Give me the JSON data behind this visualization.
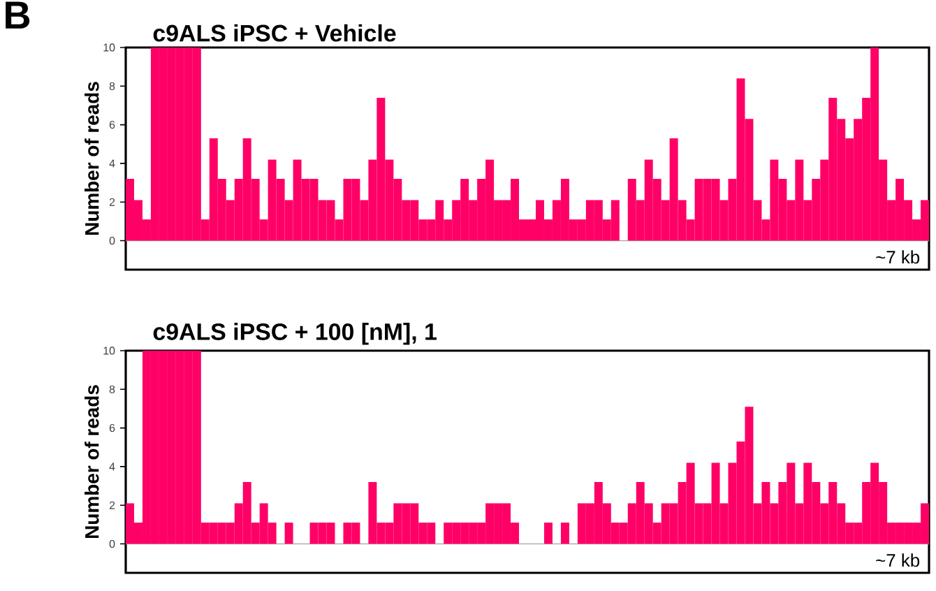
{
  "chart_data": [
    {
      "type": "bar",
      "title": "c9ALS iPSC + Vehicle",
      "ylabel": "Number of reads",
      "annotations": [
        "B",
        "~7 kb"
      ],
      "categories": [
        null,
        null,
        null,
        null,
        null,
        null,
        null,
        null,
        null,
        null,
        null,
        null,
        null,
        null,
        null,
        null,
        null,
        null,
        null,
        null,
        null,
        null,
        null,
        null,
        null,
        null,
        null,
        null,
        null,
        null,
        null,
        null,
        null,
        null,
        null,
        null,
        null,
        null,
        null,
        null,
        null,
        null,
        null,
        null,
        null,
        null,
        null,
        null,
        null,
        null,
        null,
        null,
        null,
        null,
        null,
        null,
        null,
        null,
        null,
        null,
        null,
        null,
        null,
        null,
        null,
        null,
        null,
        null,
        null,
        null,
        null,
        null,
        null,
        null,
        null,
        null,
        null,
        null,
        null,
        null,
        null,
        null,
        null,
        null,
        null,
        null,
        null,
        null,
        null,
        null,
        null,
        null,
        null,
        null,
        null,
        null
      ],
      "values": [
        3.2,
        2.1,
        1.1,
        10,
        10,
        10,
        10,
        10,
        10,
        1.1,
        5.3,
        3.2,
        2.1,
        3.2,
        5.3,
        3.2,
        1.1,
        4.2,
        3.2,
        2.1,
        4.2,
        3.2,
        3.2,
        2.1,
        2.1,
        1.1,
        3.2,
        3.2,
        2.1,
        4.2,
        7.4,
        4.2,
        3.2,
        2.1,
        2.1,
        1.1,
        1.1,
        2.1,
        1.1,
        2.1,
        3.2,
        2.1,
        3.2,
        4.2,
        2.1,
        2.1,
        3.2,
        1.1,
        1.1,
        2.1,
        1.1,
        2.1,
        3.2,
        1.1,
        1.1,
        2.1,
        2.1,
        1.1,
        2.1,
        0,
        3.2,
        2.1,
        4.2,
        3.2,
        2.1,
        5.3,
        2.1,
        1.1,
        3.2,
        3.2,
        3.2,
        2.1,
        3.2,
        8.4,
        6.3,
        2.1,
        1.1,
        4.2,
        3.2,
        2.1,
        4.2,
        2.1,
        3.2,
        4.2,
        7.4,
        6.3,
        5.3,
        6.3,
        7.4,
        10,
        4.2,
        2.1,
        3.2,
        2.1,
        1.1,
        2.1
      ],
      "color": "#ff0066",
      "ylim": [
        -1.5,
        10
      ],
      "yticks": [
        0,
        2,
        4,
        6,
        8,
        10
      ],
      "grid": false,
      "ref_lines": [
        {
          "axis": "y",
          "value": 0,
          "color": "#b0b0b0"
        }
      ]
    },
    {
      "type": "bar",
      "title": "c9ALS iPSC + 100 [nM], 1",
      "ylabel": "Number of reads",
      "annotations": [
        "~7 kb"
      ],
      "categories": [
        null,
        null,
        null,
        null,
        null,
        null,
        null,
        null,
        null,
        null,
        null,
        null,
        null,
        null,
        null,
        null,
        null,
        null,
        null,
        null,
        null,
        null,
        null,
        null,
        null,
        null,
        null,
        null,
        null,
        null,
        null,
        null,
        null,
        null,
        null,
        null,
        null,
        null,
        null,
        null,
        null,
        null,
        null,
        null,
        null,
        null,
        null,
        null,
        null,
        null,
        null,
        null,
        null,
        null,
        null,
        null,
        null,
        null,
        null,
        null,
        null,
        null,
        null,
        null,
        null,
        null,
        null,
        null,
        null,
        null,
        null,
        null,
        null,
        null,
        null,
        null,
        null,
        null,
        null,
        null,
        null,
        null,
        null,
        null,
        null,
        null,
        null,
        null,
        null,
        null,
        null,
        null,
        null,
        null,
        null,
        null
      ],
      "values": [
        2.1,
        1.1,
        10,
        10,
        10,
        10,
        10,
        10,
        10,
        1.1,
        1.1,
        1.1,
        1.1,
        2.1,
        3.2,
        1.1,
        2.1,
        1.1,
        0,
        1.1,
        0,
        0,
        1.1,
        1.1,
        1.1,
        0,
        1.1,
        1.1,
        0,
        3.2,
        1.1,
        1.1,
        2.1,
        2.1,
        2.1,
        1.1,
        1.1,
        0,
        1.1,
        1.1,
        1.1,
        1.1,
        1.1,
        2.1,
        2.1,
        2.1,
        1.1,
        0,
        0,
        0,
        1.1,
        0,
        1.1,
        0,
        2.1,
        2.1,
        3.2,
        2.1,
        1.1,
        1.1,
        2.1,
        3.2,
        2.1,
        1.1,
        2.1,
        2.1,
        3.2,
        4.2,
        2.1,
        2.1,
        4.2,
        2.1,
        4.2,
        5.3,
        7.1,
        2.1,
        3.2,
        2.1,
        3.2,
        4.2,
        2.1,
        4.2,
        3.2,
        2.1,
        3.2,
        2.1,
        1.1,
        1.1,
        3.2,
        4.2,
        3.2,
        1.1,
        1.1,
        1.1,
        1.1,
        2.1
      ],
      "color": "#ff0066",
      "ylim": [
        -1.5,
        10
      ],
      "yticks": [
        0,
        2,
        4,
        6,
        8,
        10
      ],
      "grid": false,
      "ref_lines": [
        {
          "axis": "y",
          "value": 0,
          "color": "#b0b0b0"
        }
      ]
    }
  ]
}
